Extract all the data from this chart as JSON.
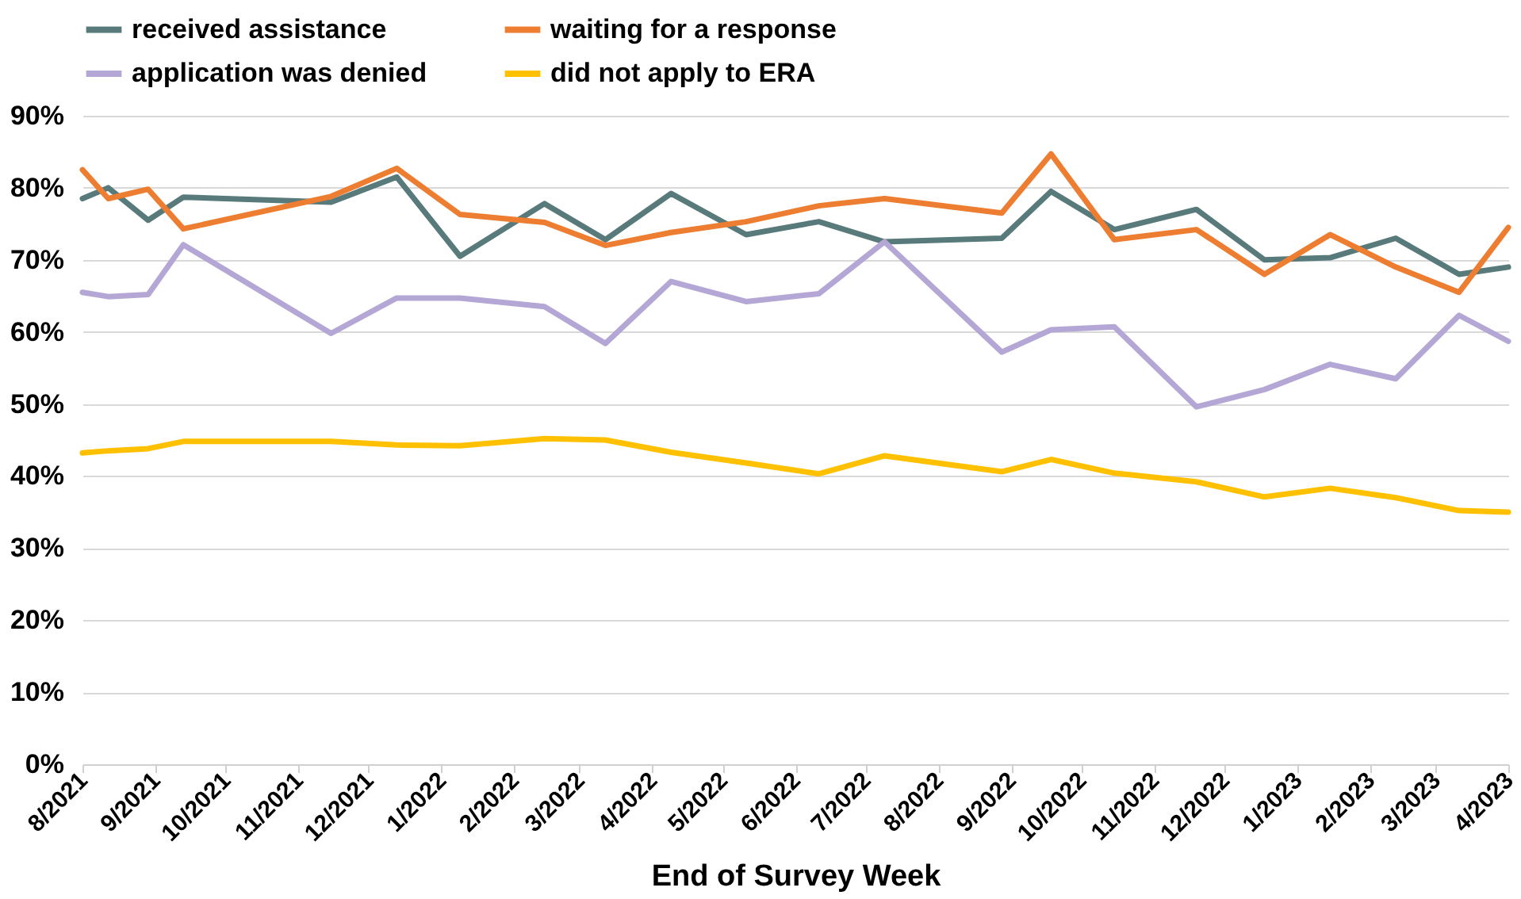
{
  "chart_data": {
    "type": "line",
    "xlabel": "End of Survey Week",
    "x": [
      "2021-08-01",
      "2021-08-12",
      "2021-08-29",
      "2021-09-13",
      "2021-11-15",
      "2021-12-13",
      "2022-01-09",
      "2022-02-14",
      "2022-03-12",
      "2022-04-09",
      "2022-05-11",
      "2022-06-11",
      "2022-07-09",
      "2022-08-28",
      "2022-09-18",
      "2022-10-15",
      "2022-11-19",
      "2022-12-18",
      "2023-01-15",
      "2023-02-12",
      "2023-03-11",
      "2023-04-01"
    ],
    "series": [
      {
        "name": "received assistance",
        "color": "#587a7a",
        "values": [
          78.5,
          80,
          75.5,
          78.7,
          78,
          81.5,
          70.5,
          77.8,
          72.8,
          79.2,
          73.5,
          75.3,
          72.5,
          73,
          79.5,
          74.2,
          77,
          70,
          70.3,
          73,
          68,
          69
        ]
      },
      {
        "name": "waiting for a response",
        "color": "#ed7d31",
        "values": [
          82.5,
          78.5,
          79.8,
          74.3,
          78.8,
          82.7,
          76.3,
          75.2,
          72,
          73.8,
          75.3,
          77.5,
          78.5,
          76.5,
          84.7,
          72.8,
          74.2,
          68,
          73.5,
          69,
          65.5,
          74.5
        ]
      },
      {
        "name": "application was denied",
        "color": "#b4a7d6",
        "values": [
          65.5,
          64.9,
          65.2,
          72.1,
          59.8,
          64.7,
          64.7,
          63.5,
          58.4,
          67,
          64.2,
          65.3,
          72.5,
          57.2,
          60.3,
          60.7,
          49.6,
          52,
          55.5,
          53.5,
          62.3,
          58.7
        ]
      },
      {
        "name": "did not apply to ERA",
        "color": "#ffc000",
        "values": [
          43.2,
          43.5,
          43.8,
          44.8,
          44.8,
          44.3,
          44.2,
          45.2,
          45,
          43.3,
          41.8,
          40.3,
          42.8,
          40.6,
          42.3,
          40.4,
          39.2,
          37.1,
          38.3,
          37,
          35.2,
          35
        ]
      }
    ],
    "xlim": [
      "2021-08-01",
      "2023-04-01"
    ],
    "xticks": [
      {
        "value": "2021-08",
        "label": "8/2021"
      },
      {
        "value": "2021-09",
        "label": "9/2021"
      },
      {
        "value": "2021-10",
        "label": "10/2021"
      },
      {
        "value": "2021-11",
        "label": "11/2021"
      },
      {
        "value": "2021-12",
        "label": "12/2021"
      },
      {
        "value": "2022-01",
        "label": "1/2022"
      },
      {
        "value": "2022-02",
        "label": "2/2022"
      },
      {
        "value": "2022-03",
        "label": "3/2022"
      },
      {
        "value": "2022-04",
        "label": "4/2022"
      },
      {
        "value": "2022-05",
        "label": "5/2022"
      },
      {
        "value": "2022-06",
        "label": "6/2022"
      },
      {
        "value": "2022-07",
        "label": "7/2022"
      },
      {
        "value": "2022-08",
        "label": "8/2022"
      },
      {
        "value": "2022-09",
        "label": "9/2022"
      },
      {
        "value": "2022-10",
        "label": "10/2022"
      },
      {
        "value": "2022-11",
        "label": "11/2022"
      },
      {
        "value": "2022-12",
        "label": "12/2022"
      },
      {
        "value": "2023-01",
        "label": "1/2023"
      },
      {
        "value": "2023-02",
        "label": "2/2023"
      },
      {
        "value": "2023-03",
        "label": "3/2023"
      },
      {
        "value": "2023-04",
        "label": "4/2023"
      }
    ],
    "ylim": [
      0,
      90
    ],
    "yticks": [
      {
        "value": 0,
        "label": "0%"
      },
      {
        "value": 10,
        "label": "10%"
      },
      {
        "value": 20,
        "label": "20%"
      },
      {
        "value": 30,
        "label": "30%"
      },
      {
        "value": 40,
        "label": "40%"
      },
      {
        "value": 50,
        "label": "50%"
      },
      {
        "value": 60,
        "label": "60%"
      },
      {
        "value": 70,
        "label": "70%"
      },
      {
        "value": 80,
        "label": "80%"
      },
      {
        "value": 90,
        "label": "90%"
      }
    ],
    "grid": "y",
    "legend": "top",
    "marker": "none",
    "line_style": "solid"
  }
}
